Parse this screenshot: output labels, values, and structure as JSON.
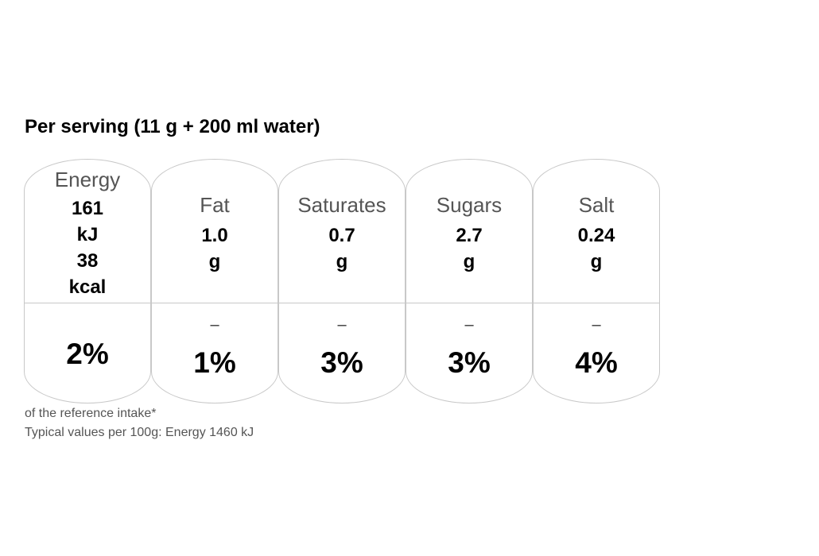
{
  "title": "Per serving (11 g + 200 ml water)",
  "items": [
    {
      "name": "Energy",
      "lines": [
        "161",
        "kJ",
        "38",
        "kcal"
      ],
      "dash": "",
      "percent": "2%"
    },
    {
      "name": "Fat",
      "lines": [
        "1.0",
        "g"
      ],
      "dash": "–",
      "percent": "1%"
    },
    {
      "name": "Saturates",
      "lines": [
        "0.7",
        "g"
      ],
      "dash": "–",
      "percent": "3%"
    },
    {
      "name": "Sugars",
      "lines": [
        "2.7",
        "g"
      ],
      "dash": "–",
      "percent": "3%"
    },
    {
      "name": "Salt",
      "lines": [
        "0.24",
        "g"
      ],
      "dash": "–",
      "percent": "4%"
    }
  ],
  "footnote": "of the reference intake*",
  "typical": "Typical values per 100g: Energy 1460 kJ"
}
